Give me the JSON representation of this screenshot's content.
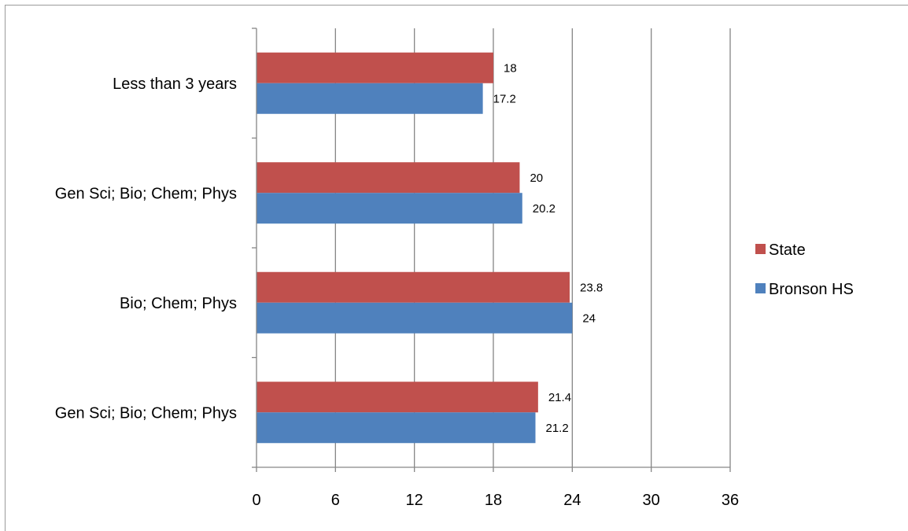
{
  "chart_data": {
    "type": "bar",
    "orientation": "horizontal",
    "title": "",
    "xlabel": "",
    "ylabel": "",
    "categories": [
      "Gen Sci; Bio; Chem; Phys",
      "Bio; Chem; Phys",
      "Gen Sci; Bio; Chem; Phys",
      "Less than 3 years"
    ],
    "series": [
      {
        "name": "Bronson HS",
        "color": "#4F81BD",
        "values": [
          21.2,
          24,
          20.2,
          17.2
        ]
      },
      {
        "name": "State",
        "color": "#C0504D",
        "values": [
          21.4,
          23.8,
          20,
          18
        ]
      }
    ],
    "xlim": [
      0,
      36
    ],
    "xticks": [
      0,
      6,
      12,
      18,
      24,
      30,
      36
    ],
    "grid": true,
    "legend": "right",
    "legend_order": [
      "State",
      "Bronson HS"
    ]
  }
}
